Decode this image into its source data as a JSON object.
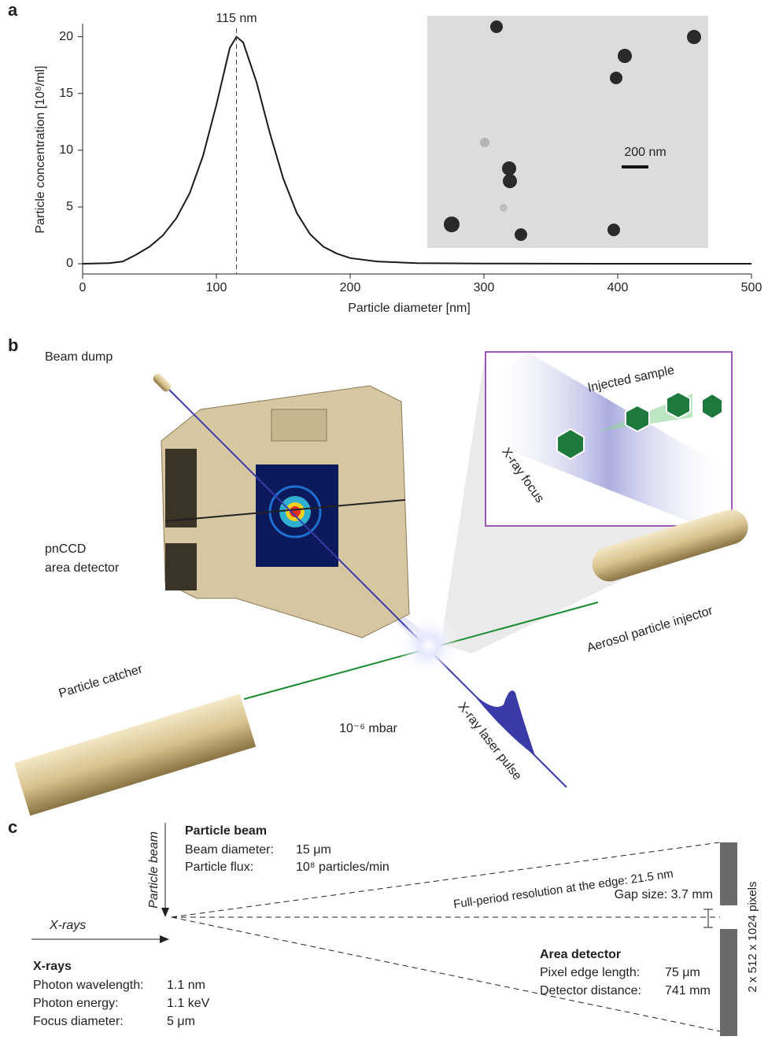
{
  "panel_labels": [
    "a",
    "b",
    "c"
  ],
  "chart_data": {
    "type": "line",
    "x": [
      0,
      20,
      30,
      40,
      50,
      60,
      70,
      80,
      90,
      100,
      110,
      115,
      120,
      130,
      140,
      150,
      160,
      170,
      180,
      190,
      200,
      220,
      250,
      300,
      400,
      500
    ],
    "values": [
      0,
      0.05,
      0.2,
      0.8,
      1.5,
      2.5,
      4.0,
      6.2,
      9.5,
      14,
      19,
      20,
      19.5,
      16,
      11.5,
      7.5,
      4.5,
      2.6,
      1.5,
      0.9,
      0.5,
      0.2,
      0.05,
      0.02,
      0,
      0
    ],
    "color": "#1a1a1a",
    "xlabel": "Particle diameter [nm]",
    "ylabel": "Particle concentration [10⁸/ml]",
    "xlim": [
      0,
      500
    ],
    "ylim": [
      -0.9,
      21.5
    ],
    "xticks": [
      0,
      100,
      200,
      300,
      400,
      500
    ],
    "yticks": [
      0,
      5,
      10,
      15,
      20
    ],
    "annotation": {
      "text": "115 nm",
      "x": 115
    },
    "inset": {
      "scale_bar": "200 nm"
    }
  },
  "illustration": {
    "beam_dump": "Beam dump",
    "detector": [
      "pnCCD",
      "area detector"
    ],
    "injected_sample": "Injected sample",
    "xray_focus": "X-ray focus",
    "injector": "Aerosol particle injector",
    "catcher": "Particle catcher",
    "pressure": "10⁻⁶ mbar",
    "pulse": "X-ray laser pulse"
  },
  "diagram": {
    "particle_beam_title": "Particle beam",
    "particle_beam_arrow": "Particle beam",
    "beam_diameter": [
      "Beam diameter:",
      "15 μm"
    ],
    "particle_flux": [
      "Particle flux:",
      "10⁸ particles/min"
    ],
    "xrays_arrow": "X-rays",
    "xrays_title": "X-rays",
    "photon_wavelength": [
      "Photon wavelength:",
      "1.1 nm"
    ],
    "photon_energy": [
      "Photon energy:",
      "1.1 keV"
    ],
    "focus_diameter": [
      "Focus diameter:",
      "5 μm"
    ],
    "resolution": "Full-period resolution at the edge: 21.5 nm",
    "gap_size": "Gap size: 3.7 mm",
    "detector_title": "Area detector",
    "pixel_edge": [
      "Pixel edge length:",
      "75 μm"
    ],
    "detector_distance": [
      "Detector distance:",
      "741 mm"
    ],
    "pixels": "2 x 512 x 1024 pixels"
  }
}
